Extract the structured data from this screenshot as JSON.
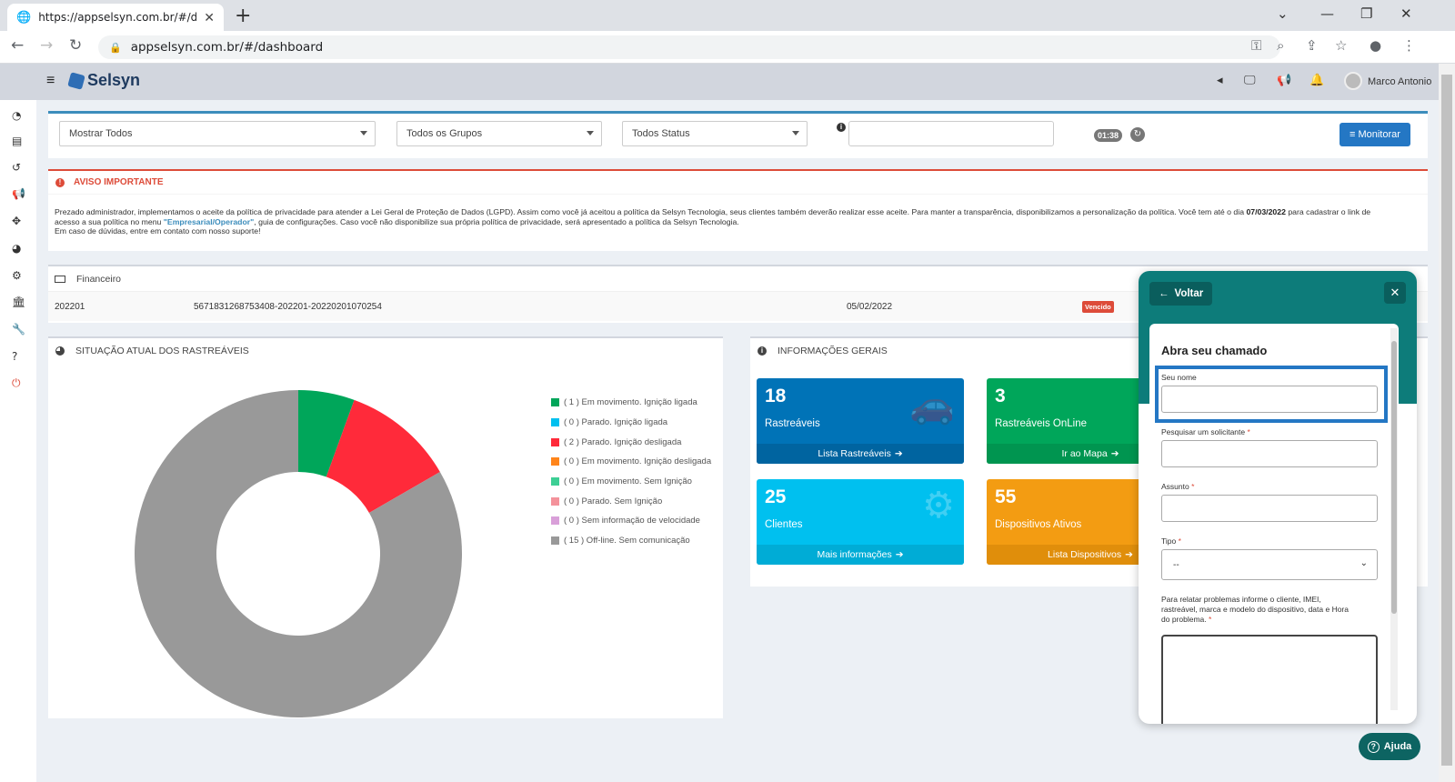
{
  "browser": {
    "tab_title": "https://appselsyn.com.br/#/dashb",
    "url": "appselsyn.com.br/#/dashboard"
  },
  "header": {
    "logo_text": "Selsyn",
    "user_name": "Marco Antonio"
  },
  "filters": {
    "vehicles": "Mostrar Todos",
    "groups": "Todos os Grupos",
    "status": "Todos Status",
    "search_placeholder": "",
    "timer": "01:38",
    "monitor_label": "Monitorar"
  },
  "aviso": {
    "title": "AVISO IMPORTANTE",
    "line1_a": "Prezado administrador, implementamos o aceite da política de privacidade para atender a Lei Geral de Proteção de Dados (LGPD). Assim como você já aceitou a política da Selsyn Tecnologia, seus clientes também deverão realizar esse aceite. Para manter a transparência, disponibilizamos a personalização da política. Você tem até o dia ",
    "date": "07/03/2022",
    "line1_b": " para cadastrar o link de",
    "line2_a": "acesso a sua política no menu ",
    "menu_link": "\"Empresarial/Operador\"",
    "line2_b": ", guia de configurações. Caso você não disponibilize sua própria política de privacidade, será apresentado a política da Selsyn Tecnologia.",
    "line3": "Em caso de dúvidas, entre em contato com nosso suporte!"
  },
  "financeiro": {
    "title": "Financeiro",
    "row": {
      "ref": "202201",
      "code": "5671831268753408-202201-20220201070254",
      "date": "05/02/2022",
      "status": "Vencido"
    }
  },
  "situacao": {
    "title": "SITUAÇÃO ATUAL DOS RASTREÁVEIS"
  },
  "chart_data": {
    "type": "pie",
    "categories": [
      "( 1 ) Em movimento. Ignição ligada",
      "( 0 ) Parado. Ignição ligada",
      "( 2 ) Parado. Ignição desligada",
      "( 0 ) Em movimento. Ignição desligada",
      "( 0 ) Em movimento. Sem Ignição",
      "( 0 ) Parado. Sem Ignição",
      "( 0 ) Sem informação de velocidade",
      "( 15 ) Off-line. Sem comunicação"
    ],
    "values": [
      1,
      0,
      2,
      0,
      0,
      0,
      0,
      15
    ],
    "colors": [
      "#00a65a",
      "#00c0ef",
      "#ff2a3a",
      "#ff851b",
      "#3dcf95",
      "#f4929b",
      "#d9a0d9",
      "#999999"
    ],
    "title": "",
    "legend": "right",
    "donut": true
  },
  "info": {
    "title": "INFORMAÇÕES GERAIS",
    "tiles": [
      {
        "num": "18",
        "label": "Rastreáveis",
        "footer": "Lista Rastreáveis",
        "color": "#0073b7",
        "footer_color": "#0064a0"
      },
      {
        "num": "3",
        "label": "Rastreáveis OnLine",
        "footer": "Ir ao Mapa",
        "color": "#00a65a",
        "footer_color": "#009550"
      },
      {
        "num": "25",
        "label": "Clientes",
        "footer": "Mais informações",
        "color": "#00c0ef",
        "footer_color": "#00acd6"
      },
      {
        "num": "55",
        "label": "Dispositivos Ativos",
        "footer": "Lista Dispositivos",
        "color": "#f39c12",
        "footer_color": "#e08e0b"
      }
    ]
  },
  "chat": {
    "back_label": "Voltar",
    "form_title": "Abra seu chamado",
    "seu_nome": "Seu nome",
    "solicitante": "Pesquisar um solicitante",
    "assunto": "Assunto",
    "tipo": "Tipo",
    "tipo_value": "--",
    "desc1": "Para relatar problemas informe o cliente, IMEI,",
    "desc2": "rastreável, marca e modelo do dispositivo, data e Hora",
    "desc3": "do problema.",
    "required_mark": "*",
    "help_label": "Ajuda"
  }
}
